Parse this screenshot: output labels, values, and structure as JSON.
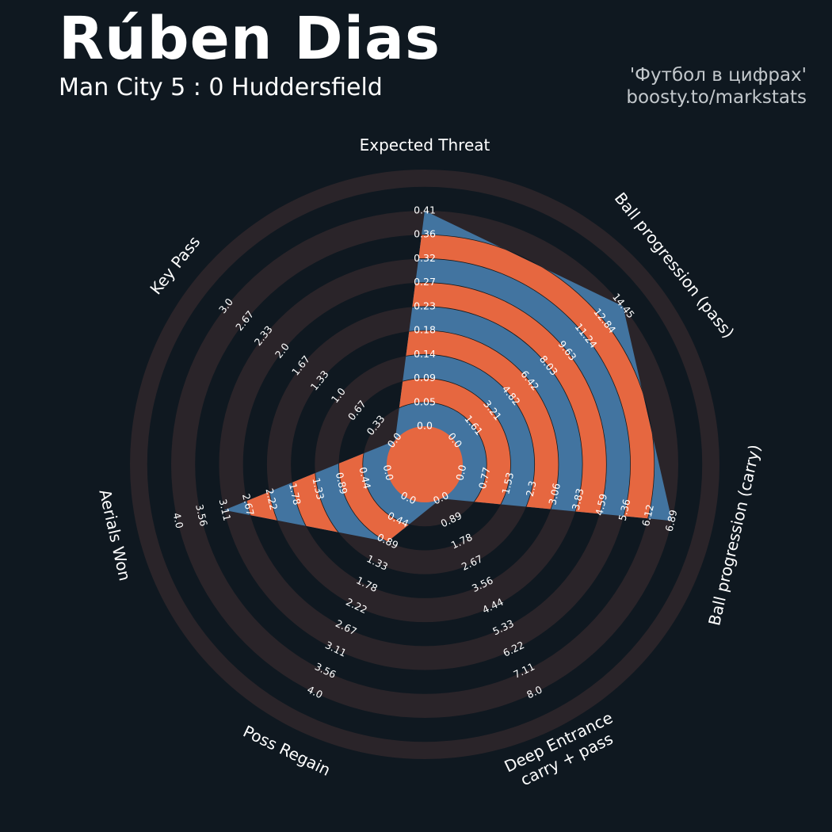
{
  "header": {
    "player_name": "Rúben Dias",
    "match": "Man City 5 : 0 Huddersfield",
    "credit_line1": "'Футбол в цифрах'",
    "credit_line2": "boosty.to/markstats"
  },
  "colors": {
    "background": "#0f1820",
    "ring_band": "#2a2429",
    "fill_blue": "#4274a0",
    "fill_orange": "#e66740",
    "text": "#ffffff"
  },
  "chart_data": {
    "type": "radar",
    "rings": 10,
    "params": [
      {
        "name": "Expected Threat",
        "value": 0.41,
        "min": 0.0,
        "max": 0.41,
        "ticks": [
          "0.0",
          "0.05",
          "0.09",
          "0.14",
          "0.18",
          "0.23",
          "0.27",
          "0.32",
          "0.36",
          "0.41"
        ]
      },
      {
        "name": "Ball progression (pass)",
        "value": 14.45,
        "min": 0.0,
        "max": 14.45,
        "ticks": [
          "0.0",
          "1.61",
          "3.21",
          "4.82",
          "6.42",
          "8.03",
          "9.63",
          "11.24",
          "12.84",
          "14.45"
        ]
      },
      {
        "name": "Ball progression (carry)",
        "value": 6.89,
        "min": 0.0,
        "max": 6.89,
        "ticks": [
          "0.0",
          "0.77",
          "1.53",
          "2.3",
          "3.06",
          "3.83",
          "4.59",
          "5.36",
          "6.12",
          "6.89"
        ]
      },
      {
        "name": "Deep Entrance\ncarry + pass",
        "value": 0.0,
        "min": 0.0,
        "max": 8.0,
        "ticks": [
          "0.0",
          "0.89",
          "1.78",
          "2.67",
          "3.56",
          "4.44",
          "5.33",
          "6.22",
          "7.11",
          "8.0"
        ]
      },
      {
        "name": "Poss Regain",
        "value": 0.89,
        "min": 0.0,
        "max": 4.0,
        "ticks": [
          "0.0",
          "0.44",
          "0.89",
          "1.33",
          "1.78",
          "2.22",
          "2.67",
          "3.11",
          "3.56",
          "4.0"
        ]
      },
      {
        "name": "Aerials Won",
        "value": 3.11,
        "min": 0.0,
        "max": 4.0,
        "ticks": [
          "0.0",
          "0.44",
          "0.89",
          "1.33",
          "1.78",
          "2.22",
          "2.67",
          "3.11",
          "3.56",
          "4.0"
        ]
      },
      {
        "name": "Key Pass",
        "value": 0.0,
        "min": 0.0,
        "max": 3.0,
        "ticks": [
          "0.0",
          "0.33",
          "0.67",
          "1.0",
          "1.33",
          "1.67",
          "2.0",
          "2.33",
          "2.67",
          "3.0"
        ]
      }
    ]
  }
}
